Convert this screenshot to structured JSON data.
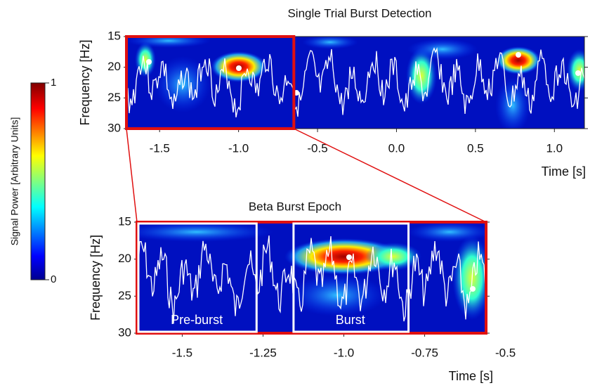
{
  "colorbar": {
    "label": "Signal Power [Arbitrary Units]",
    "lim": [
      0,
      1
    ],
    "ticks": [
      0,
      1
    ]
  },
  "chart_data": [
    {
      "type": "heatmap",
      "title": "Single Trial Burst Detection",
      "x_label": "Time [s]",
      "y_label": "Frequency [Hz]",
      "xlim": [
        -1.71,
        1.19
      ],
      "ylim": [
        15,
        30
      ],
      "y_inverted": true,
      "xticks": [
        -1.5,
        {
          "value": -1,
          "label": "-1.0"
        },
        -0.5,
        {
          "value": 0,
          "label": "0.0"
        },
        0.5,
        {
          "value": 1,
          "label": "1.0"
        }
      ],
      "yticks": [
        15,
        20,
        25,
        30
      ],
      "zoom_range": [
        -1.71,
        -0.65
      ]
    },
    {
      "type": "heatmap",
      "title": "Beta Burst Epoch",
      "x_label": "Time [s]",
      "y_label": "Frequency [Hz]",
      "xlim": [
        -1.64,
        -0.56
      ],
      "ylim": [
        15,
        30
      ],
      "y_inverted": true,
      "xticks": [
        -1.5,
        -1.25,
        {
          "value": -1,
          "label": "-1.0"
        },
        -0.75,
        -0.5
      ],
      "yticks": [
        15,
        20,
        25,
        30
      ],
      "epochs": [
        {
          "label": "Pre-burst",
          "range": [
            -1.64,
            -1.27
          ]
        },
        {
          "label": "Burst",
          "range": [
            -1.16,
            -0.8
          ]
        }
      ]
    }
  ]
}
